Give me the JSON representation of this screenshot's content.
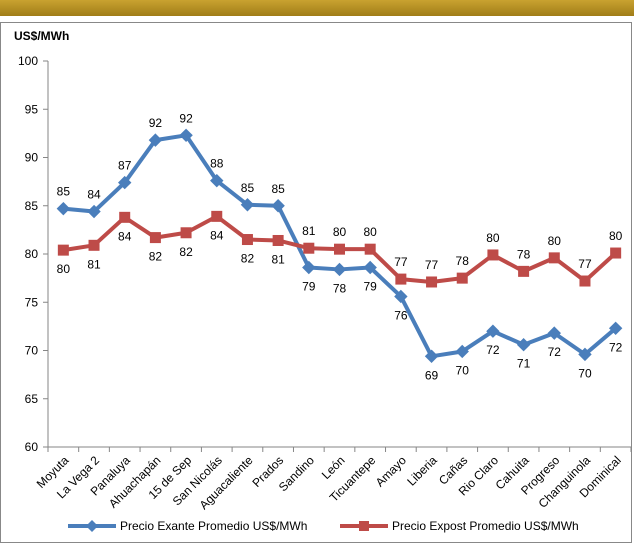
{
  "chart_data": {
    "type": "line",
    "title": "",
    "xlabel": "",
    "ylabel": "US$/MWh",
    "ylim": [
      60,
      100
    ],
    "yticks": [
      60,
      65,
      70,
      75,
      80,
      85,
      90,
      95,
      100
    ],
    "grid": false,
    "legend_position": "bottom",
    "categories": [
      "Moyuta",
      "La Vega 2",
      "Panaluya",
      "Ahuachapán",
      "15 de Sep",
      "San Nicolás",
      "Aguacaliente",
      "Prados",
      "Sandino",
      "León",
      "Ticuantepe",
      "Amayo",
      "Liberia",
      "Cañas",
      "Rio Claro",
      "Cahuita",
      "Progreso",
      "Changuinola",
      "Dominical"
    ],
    "series": [
      {
        "name": "Precio Exante Promedio US$/MWh",
        "color": "#4a7ebb",
        "marker": "diamond",
        "values": [
          84.7,
          84.4,
          87.4,
          91.8,
          92.3,
          87.6,
          85.1,
          85.0,
          78.6,
          78.4,
          78.6,
          75.6,
          69.4,
          69.9,
          72.0,
          70.6,
          71.8,
          69.6,
          72.3
        ],
        "labels": [
          "85",
          "84",
          "87",
          "92",
          "92",
          "88",
          "85",
          "85",
          "79",
          "78",
          "79",
          "76",
          "69",
          "70",
          "72",
          "71",
          "72",
          "70",
          "72"
        ]
      },
      {
        "name": "Precio Expost Promedio US$/MWh",
        "color": "#be4b48",
        "marker": "square",
        "values": [
          80.4,
          80.9,
          83.8,
          81.7,
          82.2,
          83.9,
          81.5,
          81.4,
          80.6,
          80.5,
          80.5,
          77.4,
          77.1,
          77.5,
          79.9,
          78.2,
          79.6,
          77.2,
          80.1
        ],
        "labels": [
          "80",
          "81",
          "84",
          "82",
          "82",
          "84",
          "82",
          "81",
          "81",
          "80",
          "80",
          "77",
          "77",
          "78",
          "80",
          "78",
          "80",
          "77",
          "80"
        ]
      }
    ]
  }
}
